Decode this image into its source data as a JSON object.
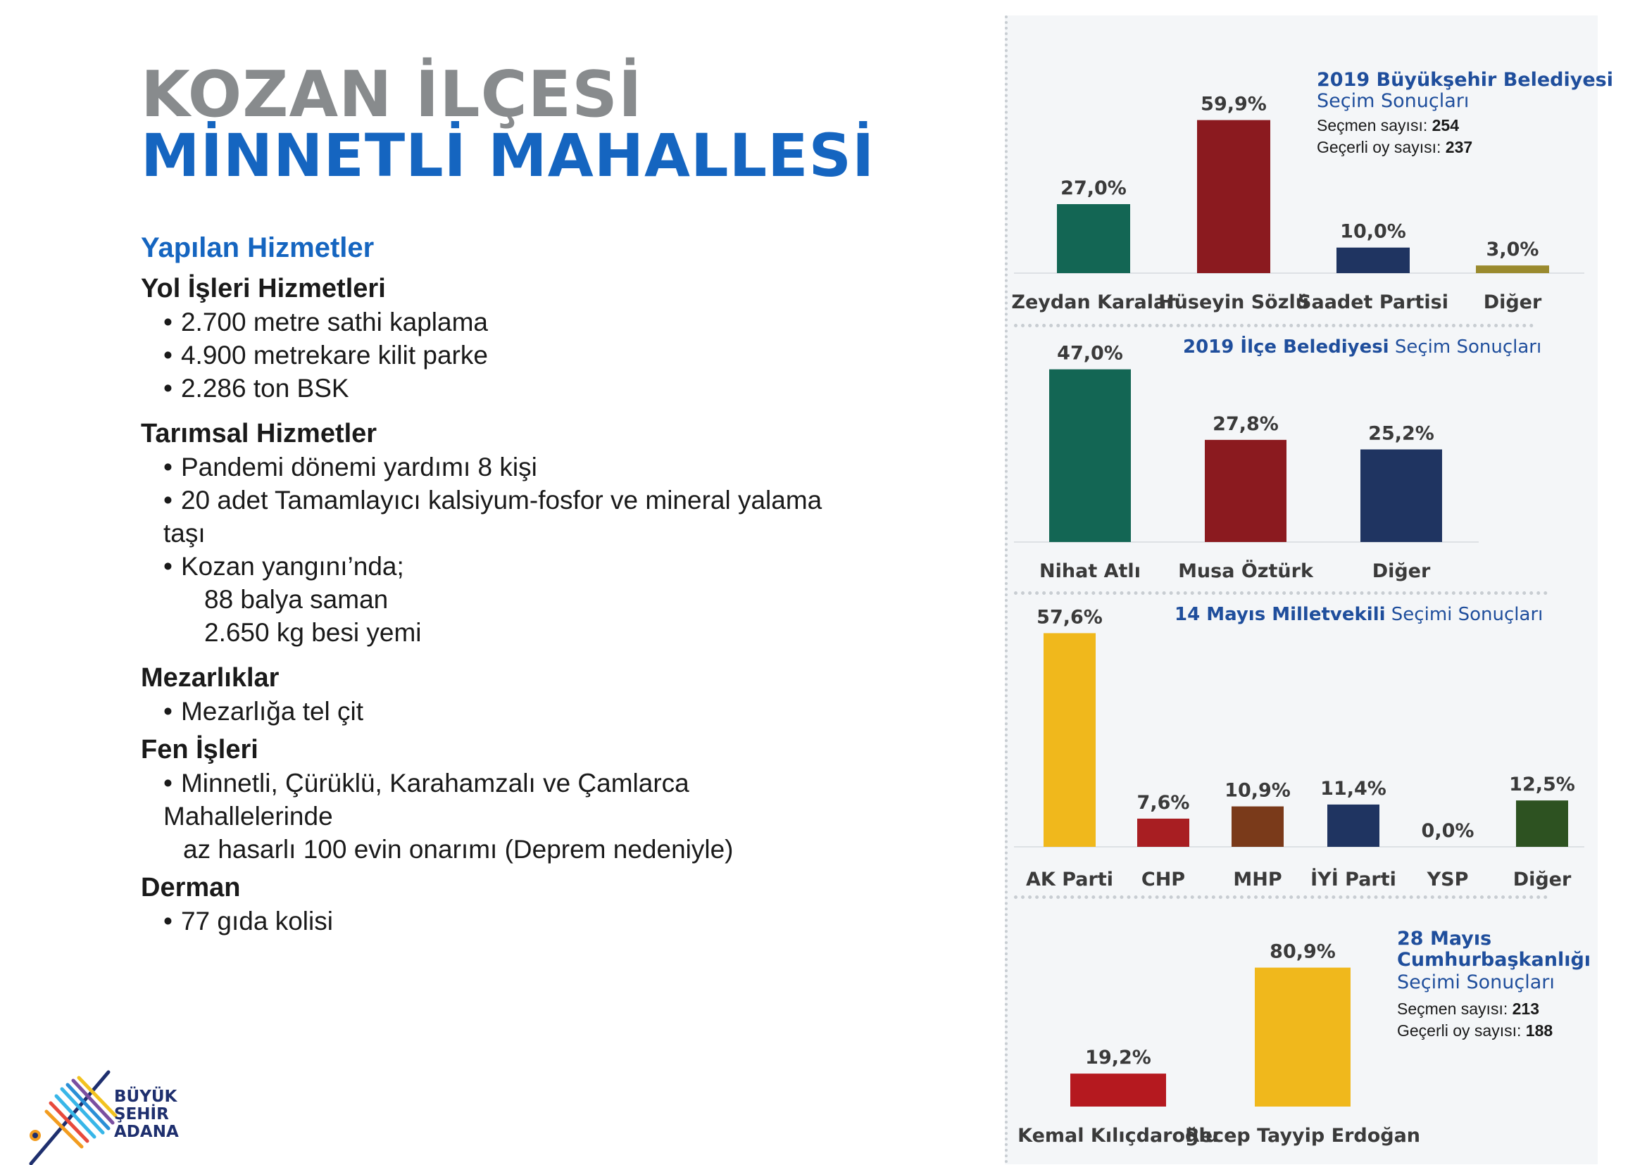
{
  "header": {
    "line1": "KOZAN İLÇESİ",
    "line2": "MİNNETLİ MAHALLESİ"
  },
  "services": {
    "heading": "Yapılan Hizmetler",
    "yol": {
      "title": "Yol İşleri Hizmetleri",
      "items": [
        "2.700 metre sathi kaplama",
        "4.900 metrekare kilit parke",
        "2.286 ton BSK"
      ]
    },
    "tarim": {
      "title": "Tarımsal Hizmetler",
      "items": [
        "Pandemi dönemi yardımı 8 kişi",
        "20 adet Tamamlayıcı kalsiyum-fosfor ve mineral yalama taşı",
        "Kozan yangını’nda;"
      ],
      "subitems": [
        "88 balya saman",
        "2.650 kg besi yemi"
      ]
    },
    "mezar": {
      "title": "Mezarlıklar",
      "items": [
        "Mezarlığa tel çit"
      ]
    },
    "fen": {
      "title": "Fen İşleri",
      "items": [
        "Minnetli, Çürüklü, Karahamzalı ve Çamlarca Mahallelerinde"
      ],
      "cont": "az hasarlı 100 evin onarımı (Deprem nedeniyle)"
    },
    "derman": {
      "title": "Derman",
      "items": [
        "77 gıda kolisi"
      ]
    }
  },
  "logo": {
    "line1": "BÜYÜK",
    "line2": "ŞEHİR",
    "line3": "ADANA"
  },
  "chart_titles": {
    "c1_bold": "2019 Büyükşehir Belediyesi",
    "c1_light": "Seçim Sonuçları",
    "c1_voters_label": "Seçmen sayısı:",
    "c1_voters": "254",
    "c1_valid_label": "Geçerli oy sayısı:",
    "c1_valid": "237",
    "c2_bold": "2019 İlçe Belediyesi",
    "c2_light": "Seçim Sonuçları",
    "c3_bold": "14 Mayıs Milletvekili",
    "c3_light": "Seçimi Sonuçları",
    "c4_bold1": "28 Mayıs",
    "c4_bold2": "Cumhurbaşkanlığı",
    "c4_light": "Seçimi Sonuçları",
    "c4_voters_label": "Seçmen sayısı:",
    "c4_voters": "213",
    "c4_valid_label": "Geçerli oy sayısı:",
    "c4_valid": "188"
  },
  "chart_data": [
    {
      "type": "bar",
      "title": "2019 Büyükşehir Belediyesi Seçim Sonuçları",
      "categories": [
        "Zeydan Karalar",
        "Hüseyin Sözlü",
        "Saadet Partisi",
        "Diğer"
      ],
      "values": [
        27.0,
        59.9,
        10.0,
        3.0
      ],
      "labels": [
        "27,0%",
        "59,9%",
        "10,0%",
        "3,0%"
      ],
      "colors": [
        "#136654",
        "#8b1a1f",
        "#1f3461",
        "#9a8a2e"
      ],
      "unit": "%"
    },
    {
      "type": "bar",
      "title": "2019 İlçe Belediyesi Seçim Sonuçları",
      "categories": [
        "Nihat Atlı",
        "Musa Öztürk",
        "Diğer"
      ],
      "values": [
        47.0,
        27.8,
        25.2
      ],
      "labels": [
        "47,0%",
        "27,8%",
        "25,2%"
      ],
      "colors": [
        "#136654",
        "#8b1a1f",
        "#1f3461"
      ],
      "unit": "%"
    },
    {
      "type": "bar",
      "title": "14 Mayıs Milletvekili Seçimi Sonuçları",
      "categories": [
        "AK Parti",
        "CHP",
        "MHP",
        "İYİ Parti",
        "YSP",
        "Diğer"
      ],
      "values": [
        57.6,
        7.6,
        10.9,
        11.4,
        0.0,
        12.5
      ],
      "labels": [
        "57,6%",
        "7,6%",
        "10,9%",
        "11,4%",
        "0,0%",
        "12,5%"
      ],
      "colors": [
        "#f0b81c",
        "#a81e22",
        "#7a3a1a",
        "#1f3461",
        "#6a3d8f",
        "#2d5221"
      ],
      "unit": "%"
    },
    {
      "type": "bar",
      "title": "28 Mayıs Cumhurbaşkanlığı Seçimi Sonuçları",
      "categories": [
        "Kemal Kılıçdaroğlu",
        "Recep Tayyip Erdoğan"
      ],
      "values": [
        19.2,
        80.9
      ],
      "labels": [
        "19,2%",
        "80,9%"
      ],
      "colors": [
        "#b5191f",
        "#f0b81c"
      ],
      "unit": "%"
    }
  ]
}
